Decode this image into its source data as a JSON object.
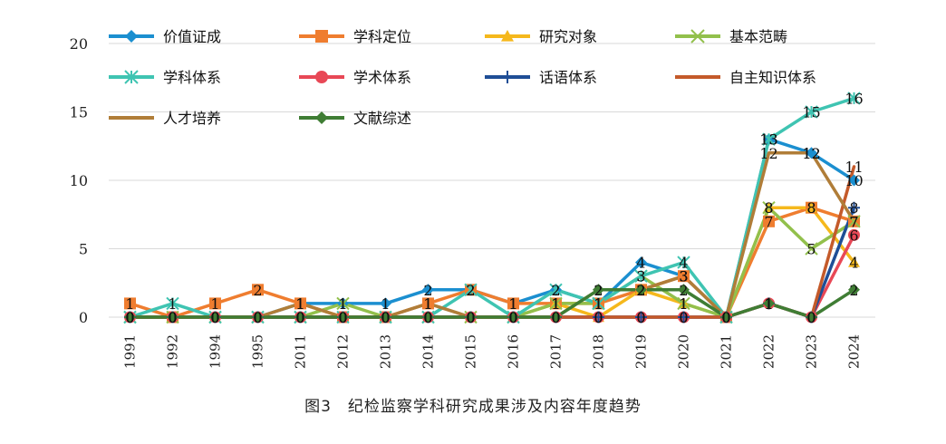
{
  "figure": {
    "caption": "图3　纪检监察学科研究成果涉及内容年度趋势"
  },
  "chart_data": {
    "type": "line",
    "title": "",
    "xlabel": "",
    "ylabel": "",
    "ylim": [
      0,
      20
    ],
    "yticks": [
      "0",
      "5",
      "10",
      "15",
      "20"
    ],
    "grid": true,
    "legend": "top",
    "categories": [
      "1991",
      "1992",
      "1994",
      "1995",
      "2011",
      "2012",
      "2013",
      "2014",
      "2015",
      "2016",
      "2017",
      "2018",
      "2019",
      "2020",
      "2021",
      "2022",
      "2023",
      "2024"
    ],
    "series": [
      {
        "name": "价值证成",
        "color": "#1b8fd0",
        "marker": "diamond",
        "values": [
          0,
          0,
          0,
          0,
          1,
          1,
          1,
          2,
          2,
          1,
          2,
          1,
          4,
          3,
          0,
          13,
          12,
          10
        ]
      },
      {
        "name": "学科定位",
        "color": "#ef7d2f",
        "marker": "square",
        "values": [
          1,
          0,
          1,
          2,
          1,
          0,
          0,
          1,
          2,
          1,
          1,
          1,
          2,
          3,
          0,
          7,
          8,
          7
        ]
      },
      {
        "name": "研究对象",
        "color": "#f5b81c",
        "marker": "triangle",
        "values": [
          0,
          0,
          0,
          0,
          0,
          0,
          0,
          0,
          0,
          0,
          1,
          0,
          2,
          1,
          0,
          8,
          8,
          4
        ]
      },
      {
        "name": "基本范畴",
        "color": "#92c04c",
        "marker": "x",
        "values": [
          0,
          0,
          0,
          0,
          0,
          1,
          0,
          0,
          0,
          0,
          1,
          1,
          3,
          1,
          0,
          8,
          5,
          7
        ]
      },
      {
        "name": "学科体系",
        "color": "#3fc4b2",
        "marker": "asterisk",
        "values": [
          0,
          1,
          0,
          0,
          0,
          0,
          0,
          0,
          2,
          0,
          2,
          1,
          3,
          4,
          0,
          13,
          15,
          16
        ]
      },
      {
        "name": "学术体系",
        "color": "#e84856",
        "marker": "circle",
        "values": [
          0,
          0,
          0,
          0,
          0,
          0,
          0,
          0,
          0,
          0,
          0,
          0,
          0,
          0,
          0,
          1,
          0,
          6
        ]
      },
      {
        "name": "话语体系",
        "color": "#1f4e96",
        "marker": "plus",
        "values": [
          0,
          0,
          0,
          0,
          0,
          0,
          0,
          0,
          0,
          0,
          0,
          0,
          0,
          0,
          0,
          1,
          0,
          8
        ]
      },
      {
        "name": "自主知识体系",
        "color": "#c45a2a",
        "marker": "none",
        "values": [
          0,
          0,
          0,
          0,
          0,
          0,
          0,
          0,
          0,
          0,
          0,
          0,
          0,
          0,
          0,
          1,
          0,
          11
        ]
      },
      {
        "name": "人才培养",
        "color": "#b07d38",
        "marker": "none",
        "values": [
          0,
          0,
          0,
          0,
          1,
          0,
          0,
          1,
          0,
          0,
          0,
          2,
          2,
          3,
          0,
          12,
          12,
          7
        ]
      },
      {
        "name": "文献综述",
        "color": "#3f7d34",
        "marker": "diamond",
        "values": [
          0,
          0,
          0,
          0,
          0,
          0,
          0,
          0,
          0,
          0,
          0,
          2,
          2,
          2,
          0,
          1,
          0,
          2
        ]
      }
    ]
  }
}
